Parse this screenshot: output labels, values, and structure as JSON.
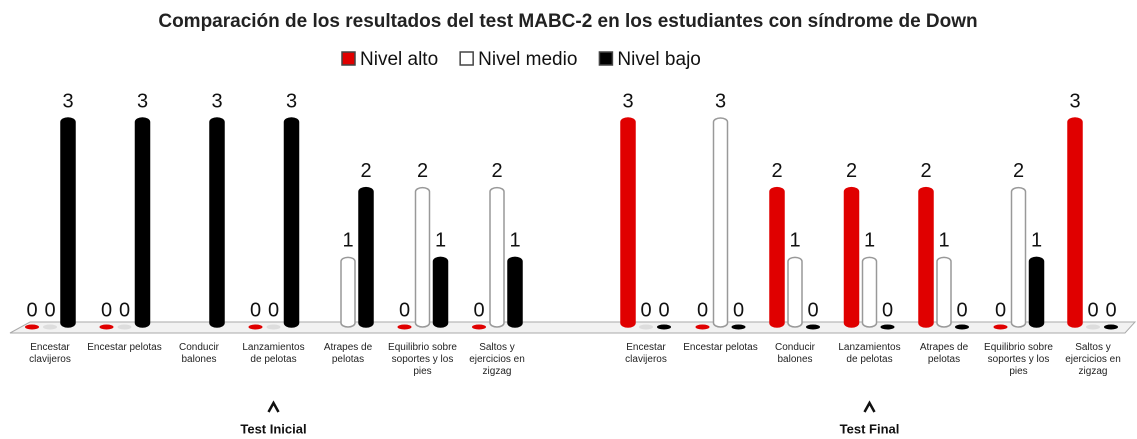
{
  "chart_data": {
    "type": "bar",
    "title": "Comparación  de los resultados  del test MABC-2 en los estudiantes con  síndrome de Down",
    "groups": [
      "Test Inicial",
      "Test Final"
    ],
    "categories": [
      "Encestar clavijeros",
      "Encestar pelotas",
      "Conducir balones",
      "Lanzamientos de pelotas",
      "Atrapes de pelotas",
      "Equilibrio sobre soportes y los pies",
      "Saltos y ejercicios en zigzag",
      "Encestar clavijeros",
      "Encestar pelotas",
      "Conducir balones",
      "Lanzamientos de pelotas",
      "Atrapes de pelotas",
      "Equilibrio sobre soportes y los pies",
      "Saltos y ejercicios en zigzag"
    ],
    "series": [
      {
        "name": "Nivel alto",
        "color": "#e00000",
        "values": [
          0,
          0,
          null,
          0,
          null,
          0,
          0,
          3,
          0,
          2,
          2,
          2,
          0,
          3
        ]
      },
      {
        "name": "Nivel medio",
        "color": "#ffffff",
        "values": [
          0,
          0,
          null,
          0,
          1,
          2,
          2,
          0,
          3,
          1,
          1,
          1,
          2,
          0
        ]
      },
      {
        "name": "Nivel bajo",
        "color": "#000000",
        "values": [
          3,
          3,
          3,
          3,
          2,
          1,
          1,
          0,
          0,
          0,
          0,
          0,
          1,
          0
        ]
      }
    ],
    "ylim": [
      0,
      3
    ],
    "legend": "top"
  }
}
